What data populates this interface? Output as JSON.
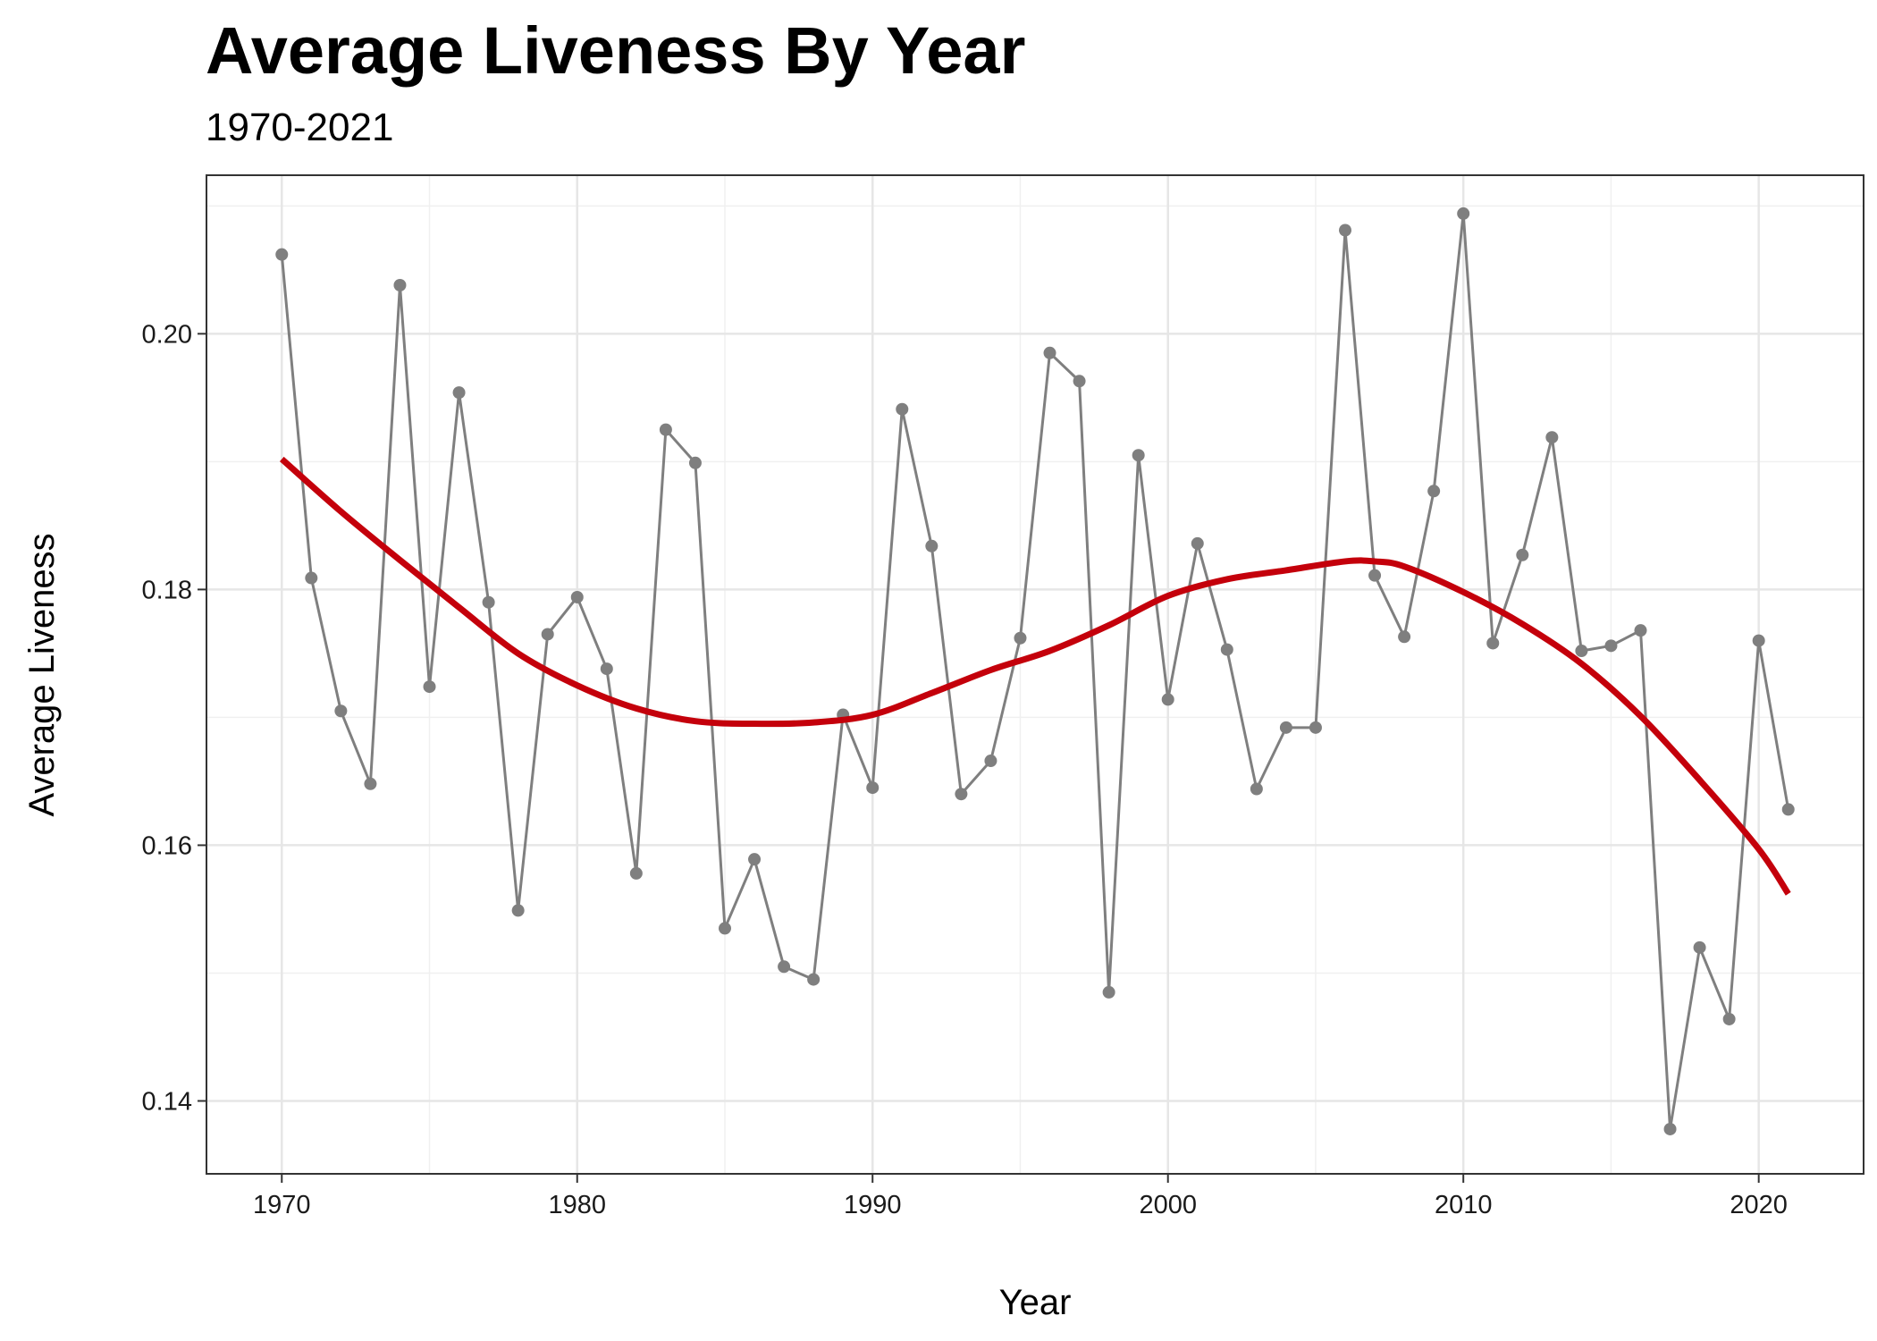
{
  "chart_data": {
    "type": "line",
    "title": "Average Liveness By Year",
    "subtitle": "1970-2021",
    "xlabel": "Year",
    "ylabel": "Average Liveness",
    "xlim": [
      1967.45,
      2023.55
    ],
    "ylim": [
      0.1343,
      0.2124
    ],
    "x_ticks": [
      1970,
      1980,
      1990,
      2000,
      2010,
      2020
    ],
    "x_tick_labels": [
      "1970",
      "1980",
      "1990",
      "2000",
      "2010",
      "2020"
    ],
    "y_ticks": [
      0.14,
      0.16,
      0.18,
      0.2
    ],
    "y_tick_labels": [
      "0.14",
      "0.16",
      "0.18",
      "0.20"
    ],
    "grid": true,
    "series": [
      {
        "kind": "observed",
        "color": "#7f7f7f",
        "x": [
          1970,
          1971,
          1972,
          1973,
          1974,
          1975,
          1976,
          1977,
          1978,
          1979,
          1980,
          1981,
          1982,
          1983,
          1984,
          1985,
          1986,
          1987,
          1988,
          1989,
          1990,
          1991,
          1992,
          1993,
          1994,
          1995,
          1996,
          1997,
          1998,
          1999,
          2000,
          2001,
          2002,
          2003,
          2004,
          2005,
          2006,
          2007,
          2008,
          2009,
          2010,
          2011,
          2012,
          2013,
          2014,
          2015,
          2016,
          2017,
          2018,
          2019,
          2020,
          2021
        ],
        "values": [
          0.2062,
          0.1809,
          0.1705,
          0.1648,
          0.2038,
          0.1724,
          0.1954,
          0.179,
          0.1549,
          0.1765,
          0.1794,
          0.1738,
          0.1578,
          0.1925,
          0.1899,
          0.1535,
          0.1589,
          0.1505,
          0.1495,
          0.1702,
          0.1645,
          0.1941,
          0.1834,
          0.164,
          0.1666,
          0.1762,
          0.1985,
          0.1963,
          0.1485,
          0.1905,
          0.1714,
          0.1836,
          0.1753,
          0.1644,
          0.1692,
          0.1692,
          0.2081,
          0.1811,
          0.1763,
          0.1877,
          0.2094,
          0.1758,
          0.1827,
          0.1919,
          0.1752,
          0.1756,
          0.1768,
          0.1378,
          0.152,
          0.1464,
          0.176,
          0.1628
        ]
      },
      {
        "kind": "smooth",
        "color": "#c4000b",
        "x": [
          1970,
          1972,
          1974,
          1976,
          1978,
          1980,
          1982,
          1984,
          1986,
          1988,
          1990,
          1992,
          1994,
          1996,
          1998,
          2000,
          2002,
          2004,
          2006,
          2007,
          2008,
          2010,
          2012,
          2014,
          2016,
          2018,
          2020,
          2021
        ],
        "values": [
          0.1902,
          0.1861,
          0.1823,
          0.1786,
          0.175,
          0.1725,
          0.1707,
          0.1697,
          0.1695,
          0.1696,
          0.1702,
          0.1719,
          0.1737,
          0.1752,
          0.1772,
          0.1795,
          0.1808,
          0.1815,
          0.1822,
          0.1822,
          0.1818,
          0.1798,
          0.1773,
          0.1742,
          0.1701,
          0.1651,
          0.1597,
          0.1562
        ]
      }
    ]
  }
}
